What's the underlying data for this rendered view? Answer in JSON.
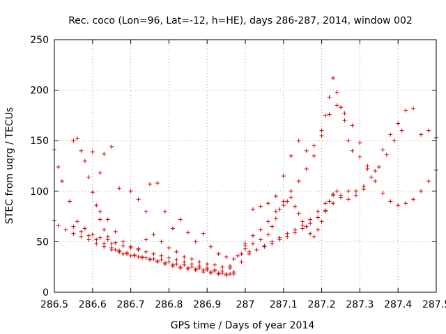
{
  "chart_data": {
    "type": "scatter",
    "title": "Rec. coco (Lon=96, Lat=-12, h=HE), days 286-287, 2014, window 002",
    "xlabel": "GPS time / Days of year 2014",
    "ylabel": "STEC from uqrg / TECUs",
    "xlim": [
      286.5,
      287.5
    ],
    "ylim": [
      0,
      250
    ],
    "xticks": [
      286.5,
      286.6,
      286.7,
      286.8,
      286.9,
      287,
      287.1,
      287.2,
      287.3,
      287.4,
      287.5
    ],
    "xtick_labels": [
      "286.5",
      "286.6",
      "286.7",
      "286.8",
      "286.9",
      "287",
      "287.1",
      "287.2",
      "287.3",
      "287.4",
      "287.5"
    ],
    "yticks": [
      0,
      50,
      100,
      150,
      200,
      250
    ],
    "ytick_labels": [
      "0",
      "50",
      "100",
      "150",
      "200",
      "250"
    ],
    "grid": true,
    "marker": "plus",
    "color": "#cc0000",
    "series": [
      {
        "points": [
          [
            286.5,
            141
          ],
          [
            286.51,
            124
          ],
          [
            286.52,
            110
          ],
          [
            286.54,
            90
          ],
          [
            286.56,
            70
          ],
          [
            286.58,
            63
          ],
          [
            286.6,
            57
          ],
          [
            286.62,
            54
          ],
          [
            286.64,
            52
          ],
          [
            286.66,
            49
          ],
          [
            286.68,
            46
          ],
          [
            286.7,
            44
          ],
          [
            286.72,
            42
          ],
          [
            286.74,
            40
          ],
          [
            286.76,
            38
          ],
          [
            286.78,
            36
          ],
          [
            286.8,
            34
          ],
          [
            286.82,
            32
          ],
          [
            286.84,
            30
          ],
          [
            286.86,
            28
          ],
          [
            286.88,
            26
          ],
          [
            286.9,
            24
          ],
          [
            286.92,
            22
          ],
          [
            286.94,
            21
          ],
          [
            286.96,
            26
          ],
          [
            286.98,
            36
          ],
          [
            287.0,
            48
          ],
          [
            287.02,
            56
          ],
          [
            287.04,
            62
          ],
          [
            287.06,
            70
          ],
          [
            287.08,
            80
          ],
          [
            287.1,
            90
          ],
          [
            287.12,
            100
          ],
          [
            287.14,
            110
          ],
          [
            287.16,
            122
          ],
          [
            287.18,
            135
          ],
          [
            287.2,
            155
          ],
          [
            287.21,
            175
          ],
          [
            287.22,
            193
          ],
          [
            287.23,
            212
          ],
          [
            287.24,
            198
          ],
          [
            287.25,
            183
          ],
          [
            287.26,
            170
          ],
          [
            287.27,
            150
          ],
          [
            287.28,
            140
          ],
          [
            287.3,
            134
          ],
          [
            287.32,
            122
          ],
          [
            287.34,
            110
          ],
          [
            287.36,
            98
          ],
          [
            287.38,
            90
          ],
          [
            287.4,
            86
          ],
          [
            287.42,
            88
          ],
          [
            287.44,
            92
          ],
          [
            287.46,
            100
          ],
          [
            287.48,
            110
          ],
          [
            287.5,
            121
          ],
          [
            286.5,
            71
          ],
          [
            286.51,
            66
          ],
          [
            286.53,
            62
          ],
          [
            286.55,
            58
          ],
          [
            286.57,
            55
          ],
          [
            286.59,
            52
          ],
          [
            286.61,
            48
          ],
          [
            286.63,
            45
          ],
          [
            286.65,
            42
          ],
          [
            286.67,
            40
          ],
          [
            286.69,
            38
          ],
          [
            286.71,
            36
          ],
          [
            286.73,
            34
          ],
          [
            286.75,
            32
          ],
          [
            286.77,
            30
          ],
          [
            286.79,
            28
          ],
          [
            286.81,
            26
          ],
          [
            286.83,
            24
          ],
          [
            286.85,
            23
          ],
          [
            286.87,
            22
          ],
          [
            286.89,
            20
          ],
          [
            286.91,
            19
          ],
          [
            286.93,
            18
          ],
          [
            286.95,
            17
          ],
          [
            286.97,
            20
          ],
          [
            286.99,
            30
          ],
          [
            287.01,
            38
          ],
          [
            287.03,
            42
          ],
          [
            287.05,
            46
          ],
          [
            287.07,
            50
          ],
          [
            287.09,
            54
          ],
          [
            287.11,
            58
          ],
          [
            287.13,
            62
          ],
          [
            287.15,
            66
          ],
          [
            287.17,
            72
          ],
          [
            287.19,
            80
          ],
          [
            287.21,
            88
          ],
          [
            287.23,
            96
          ],
          [
            287.25,
            94
          ],
          [
            287.27,
            92
          ],
          [
            287.29,
            96
          ],
          [
            287.31,
            105
          ],
          [
            287.33,
            114
          ],
          [
            287.35,
            124
          ],
          [
            287.37,
            136
          ],
          [
            287.39,
            150
          ],
          [
            287.41,
            160
          ],
          [
            286.55,
            150
          ],
          [
            286.56,
            152
          ],
          [
            286.57,
            140
          ],
          [
            286.58,
            130
          ],
          [
            286.59,
            114
          ],
          [
            286.6,
            99
          ],
          [
            286.61,
            86
          ],
          [
            286.62,
            72
          ],
          [
            286.63,
            62
          ],
          [
            286.64,
            55
          ],
          [
            286.65,
            48
          ],
          [
            286.66,
            42
          ],
          [
            286.67,
            40
          ],
          [
            286.68,
            38
          ],
          [
            286.7,
            36
          ],
          [
            286.72,
            35
          ],
          [
            286.74,
            34
          ],
          [
            286.76,
            33
          ],
          [
            286.78,
            32
          ],
          [
            286.8,
            30
          ],
          [
            286.82,
            28
          ],
          [
            286.84,
            27
          ],
          [
            286.86,
            25
          ],
          [
            286.88,
            24
          ],
          [
            286.9,
            22
          ],
          [
            286.92,
            21
          ],
          [
            286.94,
            19
          ],
          [
            286.96,
            18
          ],
          [
            286.6,
            139
          ],
          [
            286.62,
            118
          ],
          [
            286.63,
            137
          ],
          [
            286.65,
            144
          ],
          [
            286.67,
            103
          ],
          [
            286.7,
            100
          ],
          [
            286.72,
            92
          ],
          [
            286.74,
            80
          ],
          [
            286.75,
            107
          ],
          [
            286.77,
            108
          ],
          [
            286.79,
            80
          ],
          [
            286.81,
            63
          ],
          [
            286.83,
            72
          ],
          [
            286.85,
            59
          ],
          [
            286.87,
            50
          ],
          [
            286.89,
            58
          ],
          [
            286.91,
            45
          ],
          [
            286.93,
            38
          ],
          [
            286.95,
            35
          ],
          [
            286.97,
            33
          ],
          [
            286.99,
            38
          ],
          [
            286.55,
            65
          ],
          [
            286.57,
            60
          ],
          [
            286.59,
            56
          ],
          [
            286.61,
            52
          ],
          [
            286.63,
            48
          ],
          [
            286.65,
            44
          ],
          [
            286.67,
            41
          ],
          [
            286.69,
            39
          ],
          [
            286.71,
            37
          ],
          [
            286.73,
            35
          ],
          [
            286.75,
            33
          ],
          [
            286.77,
            31
          ],
          [
            286.79,
            29
          ],
          [
            286.81,
            27
          ],
          [
            286.83,
            25
          ],
          [
            286.85,
            24
          ],
          [
            286.87,
            23
          ],
          [
            286.89,
            22
          ],
          [
            286.91,
            20
          ],
          [
            286.93,
            19
          ],
          [
            286.95,
            18
          ],
          [
            286.97,
            18
          ],
          [
            286.62,
            80
          ],
          [
            286.64,
            72
          ],
          [
            286.66,
            60
          ],
          [
            286.68,
            50
          ],
          [
            286.7,
            45
          ],
          [
            286.72,
            43
          ],
          [
            286.74,
            52
          ],
          [
            286.76,
            57
          ],
          [
            286.78,
            50
          ],
          [
            286.8,
            44
          ],
          [
            286.82,
            40
          ],
          [
            286.84,
            35
          ],
          [
            286.86,
            33
          ],
          [
            286.88,
            30
          ],
          [
            286.9,
            28
          ],
          [
            286.92,
            27
          ],
          [
            286.94,
            25
          ],
          [
            286.96,
            24
          ],
          [
            287.0,
            43
          ],
          [
            287.02,
            48
          ],
          [
            287.04,
            52
          ],
          [
            287.06,
            57
          ],
          [
            287.07,
            65
          ],
          [
            287.08,
            73
          ],
          [
            287.09,
            82
          ],
          [
            287.1,
            86
          ],
          [
            287.11,
            90
          ],
          [
            287.12,
            94
          ],
          [
            287.13,
            85
          ],
          [
            287.14,
            78
          ],
          [
            287.15,
            70
          ],
          [
            287.16,
            65
          ],
          [
            287.17,
            58
          ],
          [
            287.18,
            55
          ],
          [
            287.19,
            62
          ],
          [
            287.2,
            70
          ],
          [
            287.21,
            80
          ],
          [
            287.22,
            90
          ],
          [
            287.23,
            97
          ],
          [
            287.24,
            100
          ],
          [
            287.02,
            82
          ],
          [
            287.04,
            85
          ],
          [
            287.06,
            88
          ],
          [
            287.08,
            95
          ],
          [
            287.1,
            115
          ],
          [
            287.12,
            135
          ],
          [
            287.14,
            150
          ],
          [
            287.16,
            140
          ],
          [
            287.18,
            145
          ],
          [
            287.2,
            160
          ],
          [
            287.22,
            176
          ],
          [
            287.24,
            185
          ],
          [
            287.26,
            177
          ],
          [
            287.28,
            165
          ],
          [
            287.3,
            148
          ],
          [
            287.32,
            125
          ],
          [
            287.34,
            120
          ],
          [
            287.36,
            141
          ],
          [
            287.38,
            156
          ],
          [
            287.4,
            167
          ],
          [
            287.42,
            180
          ],
          [
            287.44,
            182
          ],
          [
            287.46,
            156
          ],
          [
            287.48,
            160
          ],
          [
            287.5,
            153
          ],
          [
            287.0,
            46
          ],
          [
            287.01,
            40
          ],
          [
            287.03,
            42
          ],
          [
            287.05,
            45
          ],
          [
            287.07,
            48
          ],
          [
            287.09,
            52
          ],
          [
            287.11,
            55
          ],
          [
            287.13,
            59
          ],
          [
            287.15,
            63
          ],
          [
            287.17,
            68
          ],
          [
            287.19,
            74
          ],
          [
            287.21,
            81
          ],
          [
            287.23,
            88
          ],
          [
            287.25,
            96
          ],
          [
            287.27,
            100
          ],
          [
            287.29,
            100
          ],
          [
            287.31,
            102
          ]
        ]
      }
    ]
  }
}
